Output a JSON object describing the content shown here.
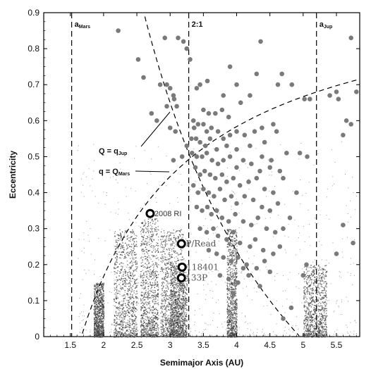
{
  "chart_data": {
    "type": "scatter",
    "xlabel": "Semimajor Axis (AU)",
    "ylabel": "Eccentricity",
    "xlim": [
      1.1,
      5.85
    ],
    "ylim": [
      0,
      0.9
    ],
    "xticks": [
      "1.5",
      "2",
      "2.5",
      "3",
      "3.5",
      "4",
      "4.5",
      "5",
      "5.5"
    ],
    "yticks": [
      "0",
      "0.1",
      "0.2",
      "0.3",
      "0.4",
      "0.5",
      "0.6",
      "0.7",
      "0.8",
      "0.9"
    ],
    "vertical_lines": [
      {
        "x": 1.52,
        "label_main": "a",
        "label_sub": "Mars"
      },
      {
        "x": 3.28,
        "label_main": "2:1",
        "label_sub": ""
      },
      {
        "x": 5.2,
        "label_main": "a",
        "label_sub": "Jup"
      }
    ],
    "curve_labels": [
      {
        "main": "Q = q",
        "sub": "Jup"
      },
      {
        "main": "q = Q",
        "sub": "Mars"
      }
    ],
    "asteroid_density_clusters": [
      {
        "a_range": [
          2.15,
          2.5
        ],
        "e_range": [
          0.0,
          0.3
        ]
      },
      {
        "a_range": [
          2.55,
          2.82
        ],
        "e_range": [
          0.0,
          0.33
        ]
      },
      {
        "a_range": [
          2.85,
          3.2
        ],
        "e_range": [
          0.0,
          0.3
        ]
      },
      {
        "a_range": [
          3.0,
          3.25
        ],
        "e_range": [
          0.0,
          0.2
        ]
      },
      {
        "a_range": [
          3.85,
          4.0
        ],
        "e_range": [
          0.0,
          0.3
        ]
      },
      {
        "a_range": [
          5.0,
          5.35
        ],
        "e_range": [
          0.0,
          0.2
        ]
      },
      {
        "a_range": [
          1.85,
          2.0
        ],
        "e_range": [
          0.0,
          0.15
        ]
      }
    ],
    "comets": [
      [
        2.22,
        0.85
      ],
      [
        2.52,
        0.77
      ],
      [
        2.92,
        0.83
      ],
      [
        3.12,
        0.83
      ],
      [
        3.2,
        0.82
      ],
      [
        4.36,
        0.82
      ],
      [
        5.72,
        0.83
      ],
      [
        2.6,
        0.72
      ],
      [
        2.85,
        0.7
      ],
      [
        2.95,
        0.7
      ],
      [
        3.0,
        0.69
      ],
      [
        3.06,
        0.66
      ],
      [
        3.25,
        0.8
      ],
      [
        3.3,
        0.77
      ],
      [
        2.72,
        0.62
      ],
      [
        2.8,
        0.6
      ],
      [
        2.95,
        0.64
      ],
      [
        3.05,
        0.67
      ],
      [
        3.1,
        0.64
      ],
      [
        3.0,
        0.58
      ],
      [
        3.08,
        0.57
      ],
      [
        3.4,
        0.69
      ],
      [
        3.45,
        0.7
      ],
      [
        3.56,
        0.71
      ],
      [
        3.8,
        0.67
      ],
      [
        3.9,
        0.75
      ],
      [
        4.0,
        0.7
      ],
      [
        4.2,
        0.67
      ],
      [
        4.3,
        0.73
      ],
      [
        4.62,
        0.7
      ],
      [
        4.68,
        0.73
      ],
      [
        4.83,
        0.7
      ],
      [
        5.02,
        0.66
      ],
      [
        5.4,
        0.67
      ],
      [
        5.5,
        0.68
      ],
      [
        5.53,
        0.66
      ],
      [
        5.65,
        0.6
      ],
      [
        5.72,
        0.59
      ],
      [
        5.8,
        0.68
      ],
      [
        5.6,
        0.56
      ],
      [
        5.1,
        0.66
      ],
      [
        3.5,
        0.63
      ],
      [
        3.58,
        0.62
      ],
      [
        3.68,
        0.62
      ],
      [
        3.78,
        0.63
      ],
      [
        3.88,
        0.61
      ],
      [
        4.06,
        0.65
      ],
      [
        4.38,
        0.58
      ],
      [
        4.55,
        0.59
      ],
      [
        4.6,
        0.57
      ],
      [
        3.35,
        0.6
      ],
      [
        3.36,
        0.58
      ],
      [
        3.42,
        0.59
      ],
      [
        3.5,
        0.59
      ],
      [
        3.55,
        0.57
      ],
      [
        3.62,
        0.58
      ],
      [
        3.72,
        0.57
      ],
      [
        3.8,
        0.55
      ],
      [
        3.9,
        0.56
      ],
      [
        4.0,
        0.57
      ],
      [
        4.12,
        0.56
      ],
      [
        4.27,
        0.57
      ],
      [
        4.42,
        0.54
      ],
      [
        3.32,
        0.55
      ],
      [
        3.39,
        0.55
      ],
      [
        3.45,
        0.54
      ],
      [
        3.53,
        0.53
      ],
      [
        3.6,
        0.55
      ],
      [
        3.7,
        0.52
      ],
      [
        3.85,
        0.53
      ],
      [
        4.0,
        0.52
      ],
      [
        4.2,
        0.53
      ],
      [
        4.38,
        0.5
      ],
      [
        4.52,
        0.49
      ],
      [
        4.95,
        0.51
      ],
      [
        5.06,
        0.5
      ],
      [
        3.25,
        0.53
      ],
      [
        3.33,
        0.51
      ],
      [
        3.4,
        0.5
      ],
      [
        3.48,
        0.5
      ],
      [
        3.55,
        0.51
      ],
      [
        3.63,
        0.49
      ],
      [
        3.72,
        0.48
      ],
      [
        3.8,
        0.49
      ],
      [
        3.9,
        0.5
      ],
      [
        4.0,
        0.47
      ],
      [
        4.1,
        0.49
      ],
      [
        4.22,
        0.48
      ],
      [
        4.35,
        0.46
      ],
      [
        4.5,
        0.47
      ],
      [
        4.65,
        0.46
      ],
      [
        4.75,
        0.51
      ],
      [
        3.05,
        0.49
      ],
      [
        3.18,
        0.5
      ],
      [
        3.38,
        0.47
      ],
      [
        3.45,
        0.45
      ],
      [
        3.52,
        0.46
      ],
      [
        3.6,
        0.45
      ],
      [
        3.68,
        0.44
      ],
      [
        3.78,
        0.45
      ],
      [
        3.85,
        0.43
      ],
      [
        3.95,
        0.44
      ],
      [
        4.05,
        0.42
      ],
      [
        4.18,
        0.43
      ],
      [
        4.3,
        0.44
      ],
      [
        4.42,
        0.41
      ],
      [
        4.55,
        0.4
      ],
      [
        4.7,
        0.44
      ],
      [
        4.9,
        0.4
      ],
      [
        3.35,
        0.42
      ],
      [
        3.42,
        0.4
      ],
      [
        3.5,
        0.41
      ],
      [
        3.58,
        0.4
      ],
      [
        3.66,
        0.39
      ],
      [
        3.75,
        0.41
      ],
      [
        3.82,
        0.38
      ],
      [
        3.92,
        0.39
      ],
      [
        4.0,
        0.37
      ],
      [
        4.12,
        0.39
      ],
      [
        4.25,
        0.38
      ],
      [
        4.38,
        0.36
      ],
      [
        4.5,
        0.35
      ],
      [
        4.62,
        0.37
      ],
      [
        4.8,
        0.33
      ],
      [
        3.4,
        0.36
      ],
      [
        3.48,
        0.35
      ],
      [
        3.56,
        0.36
      ],
      [
        3.62,
        0.34
      ],
      [
        3.7,
        0.35
      ],
      [
        3.78,
        0.33
      ],
      [
        3.88,
        0.32
      ],
      [
        3.98,
        0.34
      ],
      [
        4.1,
        0.32
      ],
      [
        4.22,
        0.31
      ],
      [
        4.32,
        0.33
      ],
      [
        4.45,
        0.3
      ],
      [
        4.58,
        0.29
      ],
      [
        4.7,
        0.3
      ],
      [
        3.45,
        0.3
      ],
      [
        3.55,
        0.29
      ],
      [
        3.65,
        0.3
      ],
      [
        3.72,
        0.28
      ],
      [
        3.85,
        0.27
      ],
      [
        3.95,
        0.29
      ],
      [
        4.05,
        0.26
      ],
      [
        4.2,
        0.25
      ],
      [
        4.28,
        0.27
      ],
      [
        4.4,
        0.24
      ],
      [
        4.55,
        0.23
      ],
      [
        4.65,
        0.25
      ],
      [
        3.58,
        0.24
      ],
      [
        3.7,
        0.23
      ],
      [
        3.8,
        0.22
      ],
      [
        3.92,
        0.21
      ],
      [
        4.02,
        0.22
      ],
      [
        4.15,
        0.2
      ],
      [
        4.3,
        0.19
      ],
      [
        4.42,
        0.21
      ],
      [
        3.75,
        0.17
      ],
      [
        3.88,
        0.16
      ],
      [
        4.02,
        0.15
      ],
      [
        4.18,
        0.17
      ],
      [
        4.35,
        0.14
      ],
      [
        4.1,
        0.19
      ],
      [
        3.95,
        0.12
      ],
      [
        4.5,
        0.18
      ],
      [
        4.7,
        0.05
      ],
      [
        4.82,
        0.08
      ],
      [
        5.0,
        0.17
      ],
      [
        5.05,
        0.2
      ],
      [
        5.6,
        0.31
      ],
      [
        5.75,
        0.26
      ],
      [
        5.5,
        0.23
      ]
    ],
    "labeled_objects": [
      {
        "name": "2008 RI",
        "a": 2.7,
        "e": 0.342,
        "label_style": "dark"
      },
      {
        "name": "P/Read",
        "a": 3.17,
        "e": 0.258,
        "label_style": "light"
      },
      {
        "name": "118401",
        "a": 3.18,
        "e": 0.193,
        "label_style": "light"
      },
      {
        "name": "133P",
        "a": 3.17,
        "e": 0.163,
        "label_style": "light"
      }
    ]
  }
}
